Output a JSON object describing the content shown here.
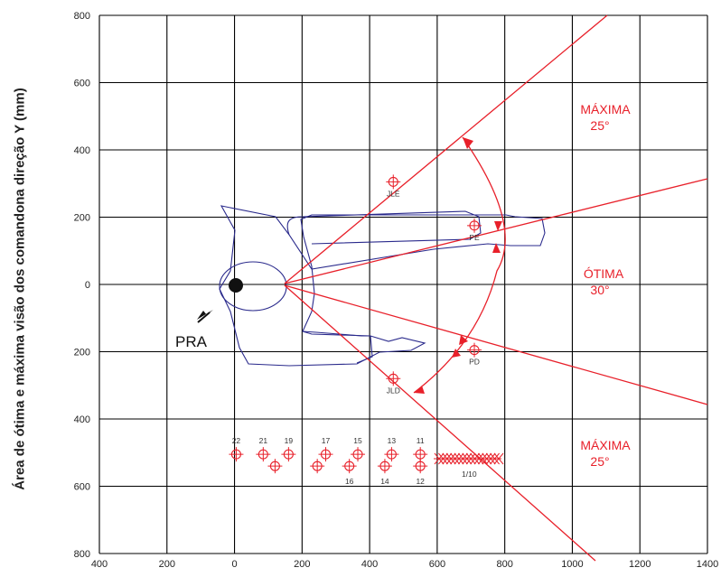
{
  "y_axis_label": "Área de ótima e máxima visão dos comandona  direção Y  (mm)",
  "x_ticks": [
    "400",
    "200",
    "0",
    "200",
    "400",
    "600",
    "800",
    "1000",
    "1200",
    "1400"
  ],
  "y_ticks": [
    "800",
    "600",
    "400",
    "200",
    "0",
    "200",
    "400",
    "600",
    "800"
  ],
  "zones": [
    {
      "line1": "MÁXIMA",
      "line2": "25°"
    },
    {
      "line1": "ÓTIMA",
      "line2": "30°"
    },
    {
      "line1": "MÁXIMA",
      "line2": "25°"
    }
  ],
  "reference_label": "PRA",
  "mirror_points": [
    {
      "label": "JLE",
      "x": 470,
      "y": 305
    },
    {
      "label": "PE",
      "x": 710,
      "y": 175
    },
    {
      "label": "PD",
      "x": 710,
      "y": -195
    },
    {
      "label": "JLD",
      "x": 470,
      "y": -280
    }
  ],
  "control_points": [
    {
      "label": "22",
      "x": 5,
      "y": -505
    },
    {
      "label": "21",
      "x": 85,
      "y": -505
    },
    {
      "label": "19",
      "x": 160,
      "y": -505
    },
    {
      "label": "17",
      "x": 270,
      "y": -505
    },
    {
      "label": "15",
      "x": 365,
      "y": -505
    },
    {
      "label": "13",
      "x": 465,
      "y": -505
    },
    {
      "label": "11",
      "x": 550,
      "y": -505
    },
    {
      "label": "",
      "x": 120,
      "y": -540
    },
    {
      "label": "",
      "x": 245,
      "y": -540
    },
    {
      "label": "16",
      "x": 340,
      "y": -540
    },
    {
      "label": "14",
      "x": 445,
      "y": -540
    },
    {
      "label": "12",
      "x": 550,
      "y": -540
    }
  ],
  "cluster_label": "1/10",
  "colors": {
    "red": "#e8202a",
    "blue": "#2a2a8c",
    "grid": "#000000"
  }
}
